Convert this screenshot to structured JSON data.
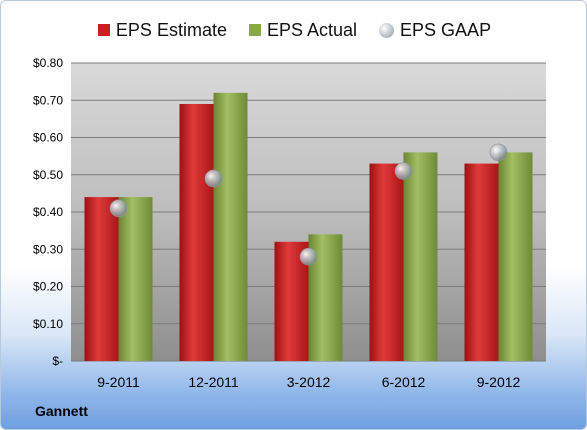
{
  "chart_data": {
    "type": "bar",
    "categories": [
      "9-2011",
      "12-2011",
      "3-2012",
      "6-2012",
      "9-2012"
    ],
    "series": [
      {
        "name": "EPS Estimate",
        "kind": "bar",
        "color": "#cc1f1f",
        "values": [
          0.44,
          0.69,
          0.32,
          0.53,
          0.53
        ]
      },
      {
        "name": "EPS Actual",
        "kind": "bar",
        "color": "#8aa84a",
        "values": [
          0.44,
          0.72,
          0.34,
          0.56,
          0.56
        ]
      },
      {
        "name": "EPS GAAP",
        "kind": "scatter",
        "color": "#a9b3bd",
        "values": [
          0.41,
          0.49,
          0.28,
          0.51,
          0.56
        ]
      }
    ],
    "y_ticks": [
      "$-",
      "$0.10",
      "$0.20",
      "$0.30",
      "$0.40",
      "$0.50",
      "$0.60",
      "$0.70",
      "$0.80"
    ],
    "ylim": [
      0,
      0.8
    ],
    "grid": true,
    "legend_position": "top"
  },
  "footer": {
    "label": "Gannett"
  }
}
